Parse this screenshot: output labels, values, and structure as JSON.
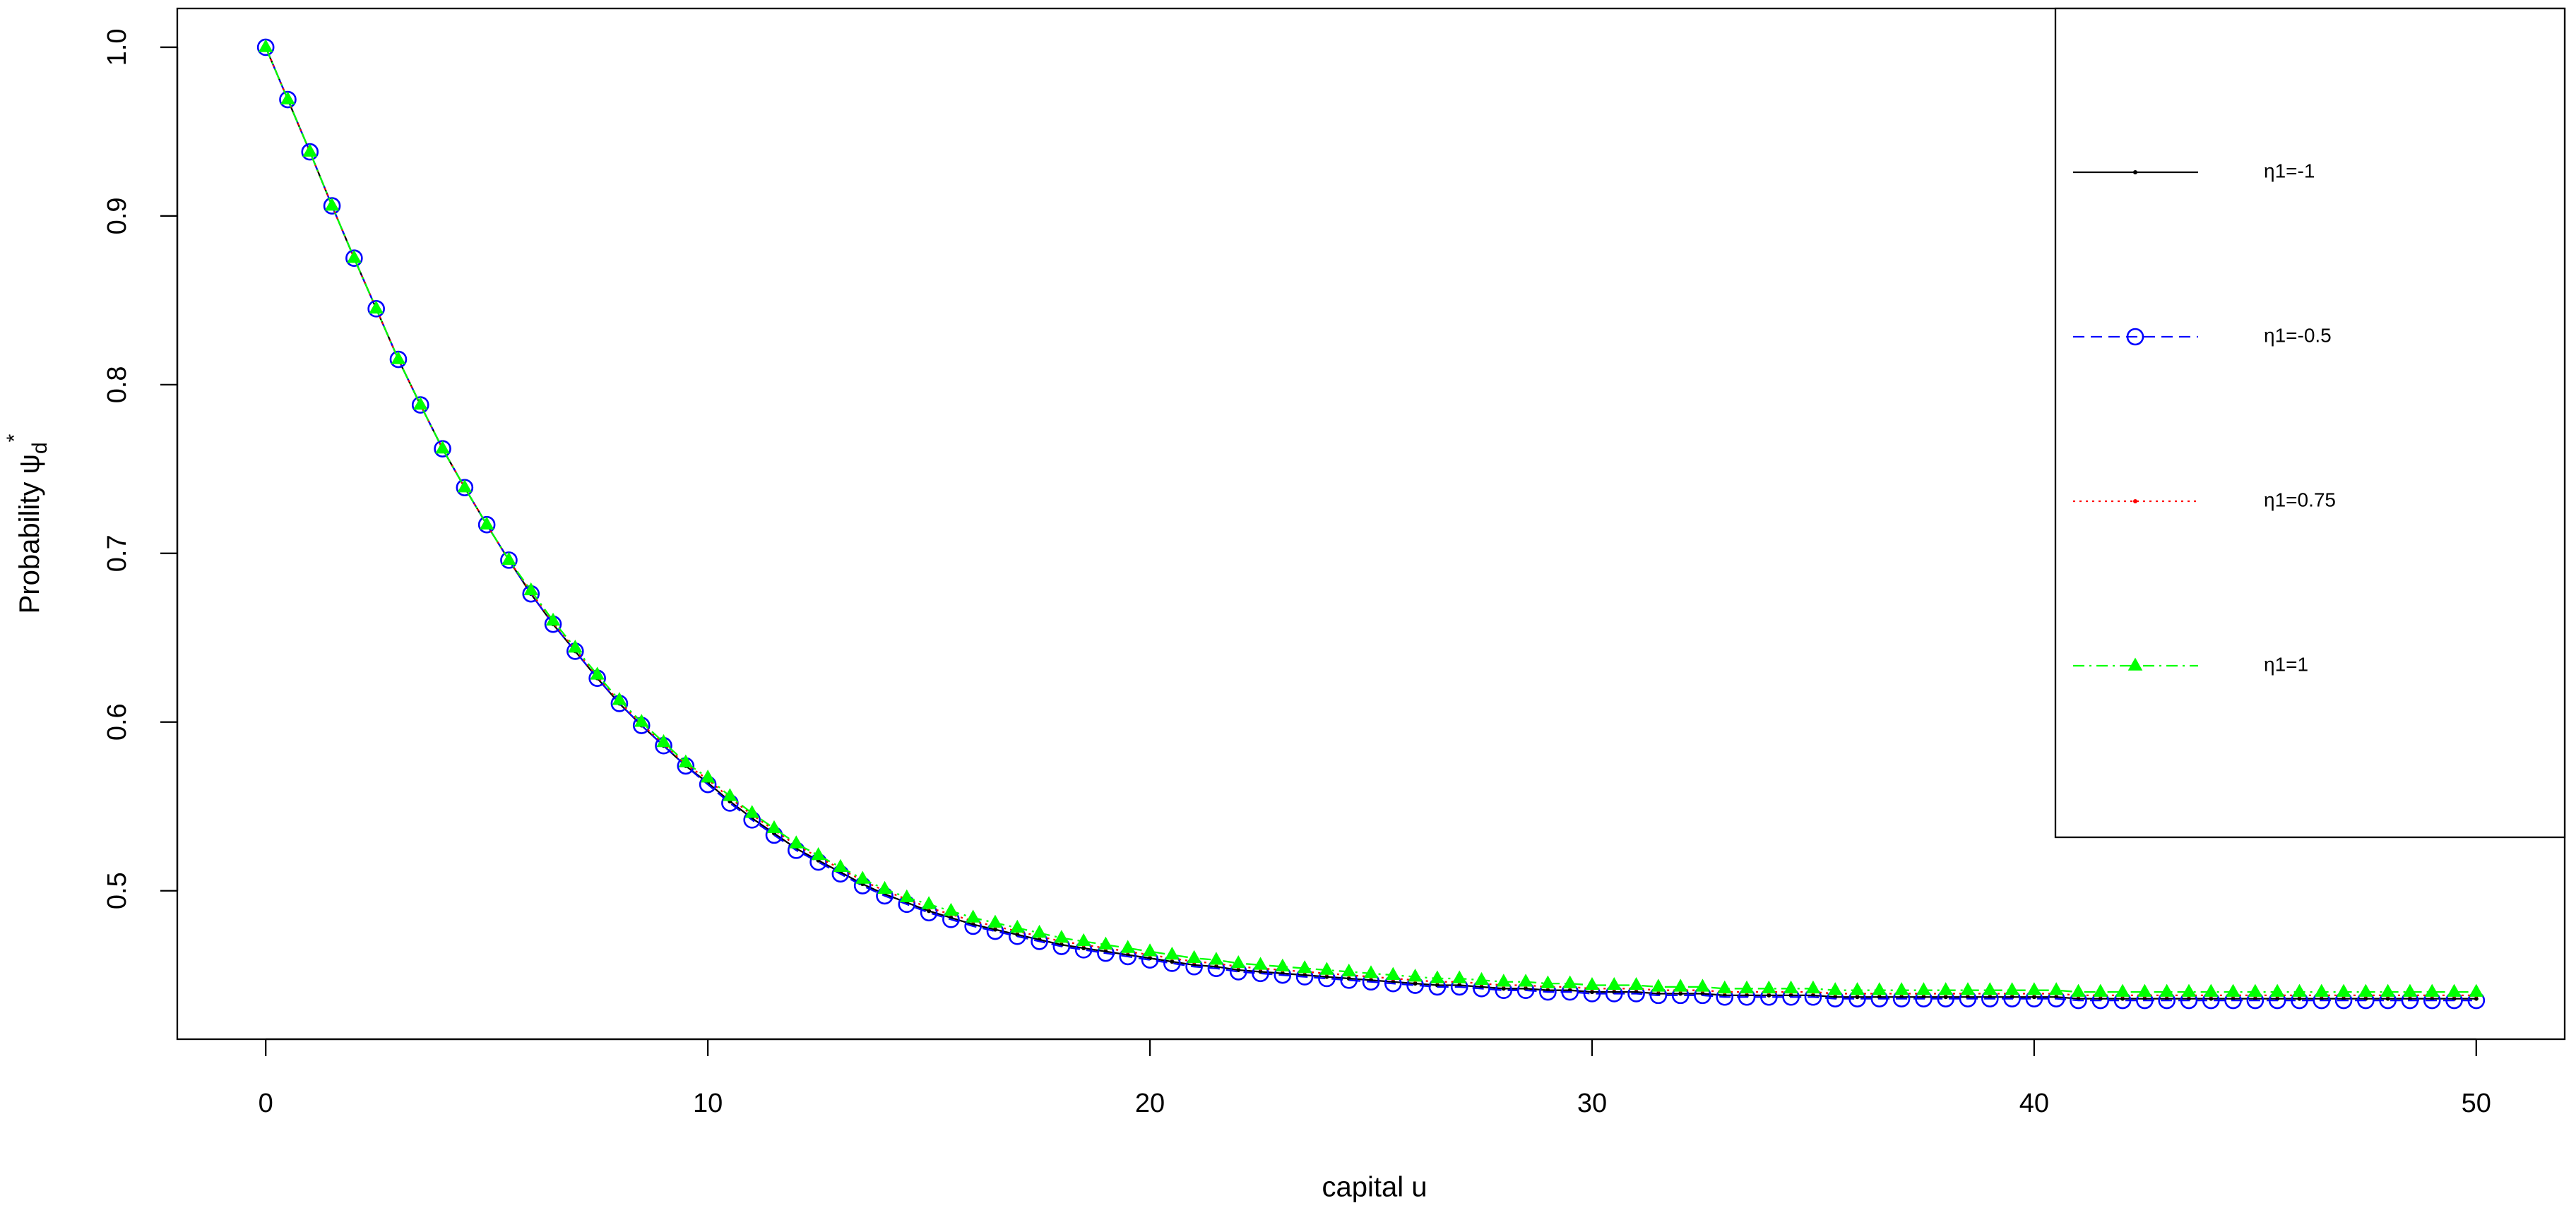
{
  "chart_data": {
    "type": "line",
    "xlabel": "capital u",
    "ylabel": {
      "text": "Probability ψ",
      "sub": "d",
      "sup": "*"
    },
    "x": [
      0,
      0.5,
      1,
      1.5,
      2,
      2.5,
      3,
      3.5,
      4,
      4.5,
      5,
      5.5,
      6,
      6.5,
      7,
      7.5,
      8,
      8.5,
      9,
      9.5,
      10,
      10.5,
      11,
      11.5,
      12,
      12.5,
      13,
      13.5,
      14,
      14.5,
      15,
      15.5,
      16,
      16.5,
      17,
      17.5,
      18,
      18.5,
      19,
      19.5,
      20,
      20.5,
      21,
      21.5,
      22,
      22.5,
      23,
      23.5,
      24,
      24.5,
      25,
      25.5,
      26,
      26.5,
      27,
      27.5,
      28,
      28.5,
      29,
      29.5,
      30,
      30.5,
      31,
      31.5,
      32,
      32.5,
      33,
      33.5,
      34,
      34.5,
      35,
      35.5,
      36,
      36.5,
      37,
      37.5,
      38,
      38.5,
      39,
      39.5,
      40,
      40.5,
      41,
      41.5,
      42,
      42.5,
      43,
      43.5,
      44,
      44.5,
      45,
      45.5,
      46,
      46.5,
      47,
      47.5,
      48,
      48.5,
      49,
      49.5,
      50
    ],
    "series": [
      {
        "name": "η1=-1",
        "color": "#000000",
        "linestyle": "solid",
        "marker": "dot",
        "values": [
          1.0,
          0.969,
          0.938,
          0.906,
          0.875,
          0.845,
          0.815,
          0.788,
          0.762,
          0.739,
          0.717,
          0.696,
          0.676,
          0.658,
          0.642,
          0.626,
          0.611,
          0.598,
          0.586,
          0.574,
          0.564,
          0.553,
          0.543,
          0.534,
          0.525,
          0.518,
          0.511,
          0.504,
          0.498,
          0.493,
          0.488,
          0.484,
          0.48,
          0.477,
          0.474,
          0.471,
          0.468,
          0.466,
          0.464,
          0.462,
          0.46,
          0.458,
          0.456,
          0.455,
          0.453,
          0.452,
          0.451,
          0.45,
          0.449,
          0.448,
          0.447,
          0.446,
          0.445,
          0.444,
          0.444,
          0.443,
          0.442,
          0.442,
          0.441,
          0.441,
          0.44,
          0.44,
          0.44,
          0.439,
          0.439,
          0.439,
          0.438,
          0.438,
          0.438,
          0.438,
          0.438,
          0.437,
          0.437,
          0.437,
          0.437,
          0.437,
          0.437,
          0.437,
          0.437,
          0.437,
          0.437,
          0.437,
          0.436,
          0.436,
          0.436,
          0.436,
          0.436,
          0.436,
          0.436,
          0.436,
          0.436,
          0.436,
          0.436,
          0.436,
          0.436,
          0.436,
          0.436,
          0.436,
          0.436,
          0.436,
          0.436
        ]
      },
      {
        "name": "η1=-0.5",
        "color": "#0000ff",
        "linestyle": "dashed",
        "marker": "circle",
        "values": [
          1.0,
          0.969,
          0.938,
          0.906,
          0.875,
          0.845,
          0.815,
          0.788,
          0.762,
          0.739,
          0.717,
          0.696,
          0.676,
          0.658,
          0.642,
          0.626,
          0.611,
          0.598,
          0.586,
          0.574,
          0.563,
          0.552,
          0.542,
          0.533,
          0.524,
          0.517,
          0.51,
          0.503,
          0.497,
          0.492,
          0.487,
          0.483,
          0.479,
          0.476,
          0.473,
          0.47,
          0.467,
          0.465,
          0.463,
          0.461,
          0.459,
          0.457,
          0.455,
          0.454,
          0.452,
          0.451,
          0.45,
          0.449,
          0.448,
          0.447,
          0.446,
          0.445,
          0.444,
          0.443,
          0.443,
          0.442,
          0.441,
          0.441,
          0.44,
          0.44,
          0.439,
          0.439,
          0.439,
          0.438,
          0.438,
          0.438,
          0.437,
          0.437,
          0.437,
          0.437,
          0.437,
          0.436,
          0.436,
          0.436,
          0.436,
          0.436,
          0.436,
          0.436,
          0.436,
          0.436,
          0.436,
          0.436,
          0.435,
          0.435,
          0.435,
          0.435,
          0.435,
          0.435,
          0.435,
          0.435,
          0.435,
          0.435,
          0.435,
          0.435,
          0.435,
          0.435,
          0.435,
          0.435,
          0.435,
          0.435,
          0.435
        ]
      },
      {
        "name": "η1=0.75",
        "color": "#ff0000",
        "linestyle": "dotted",
        "marker": "dot",
        "values": [
          1.0,
          0.969,
          0.938,
          0.906,
          0.875,
          0.845,
          0.815,
          0.788,
          0.762,
          0.739,
          0.717,
          0.696,
          0.677,
          0.659,
          0.643,
          0.627,
          0.612,
          0.599,
          0.587,
          0.575,
          0.566,
          0.555,
          0.545,
          0.536,
          0.527,
          0.52,
          0.513,
          0.506,
          0.5,
          0.495,
          0.49,
          0.486,
          0.482,
          0.479,
          0.476,
          0.473,
          0.47,
          0.468,
          0.466,
          0.464,
          0.462,
          0.46,
          0.458,
          0.457,
          0.455,
          0.454,
          0.453,
          0.452,
          0.451,
          0.45,
          0.449,
          0.448,
          0.447,
          0.446,
          0.446,
          0.445,
          0.444,
          0.444,
          0.443,
          0.443,
          0.442,
          0.442,
          0.442,
          0.441,
          0.441,
          0.441,
          0.44,
          0.44,
          0.44,
          0.44,
          0.44,
          0.439,
          0.439,
          0.439,
          0.439,
          0.439,
          0.439,
          0.439,
          0.439,
          0.439,
          0.439,
          0.439,
          0.438,
          0.438,
          0.438,
          0.438,
          0.438,
          0.438,
          0.438,
          0.438,
          0.438,
          0.438,
          0.438,
          0.438,
          0.438,
          0.438,
          0.438,
          0.438,
          0.438,
          0.438,
          0.438
        ]
      },
      {
        "name": "η1=1",
        "color": "#00ff00",
        "linestyle": "dashdot",
        "marker": "triangle",
        "values": [
          1.0,
          0.969,
          0.938,
          0.906,
          0.875,
          0.845,
          0.815,
          0.788,
          0.762,
          0.739,
          0.717,
          0.696,
          0.678,
          0.66,
          0.644,
          0.628,
          0.613,
          0.6,
          0.588,
          0.576,
          0.567,
          0.556,
          0.546,
          0.537,
          0.528,
          0.521,
          0.514,
          0.507,
          0.501,
          0.496,
          0.492,
          0.488,
          0.484,
          0.481,
          0.478,
          0.475,
          0.472,
          0.47,
          0.468,
          0.466,
          0.464,
          0.462,
          0.46,
          0.459,
          0.457,
          0.456,
          0.455,
          0.454,
          0.453,
          0.452,
          0.451,
          0.45,
          0.449,
          0.448,
          0.448,
          0.447,
          0.446,
          0.446,
          0.445,
          0.445,
          0.444,
          0.444,
          0.444,
          0.443,
          0.443,
          0.443,
          0.442,
          0.442,
          0.442,
          0.442,
          0.442,
          0.441,
          0.441,
          0.441,
          0.441,
          0.441,
          0.441,
          0.441,
          0.441,
          0.441,
          0.441,
          0.441,
          0.44,
          0.44,
          0.44,
          0.44,
          0.44,
          0.44,
          0.44,
          0.44,
          0.44,
          0.44,
          0.44,
          0.44,
          0.44,
          0.44,
          0.44,
          0.44,
          0.44,
          0.44,
          0.44
        ]
      }
    ],
    "xlim": [
      -2,
      52
    ],
    "ylim": [
      0.412,
      1.023
    ],
    "xticks": [
      0,
      10,
      20,
      30,
      40,
      50
    ],
    "yticks": [
      0.5,
      0.6,
      0.7,
      0.8,
      0.9,
      {
        "value": 1,
        "label": "1.0"
      }
    ],
    "grid": false,
    "legend": "topright"
  }
}
